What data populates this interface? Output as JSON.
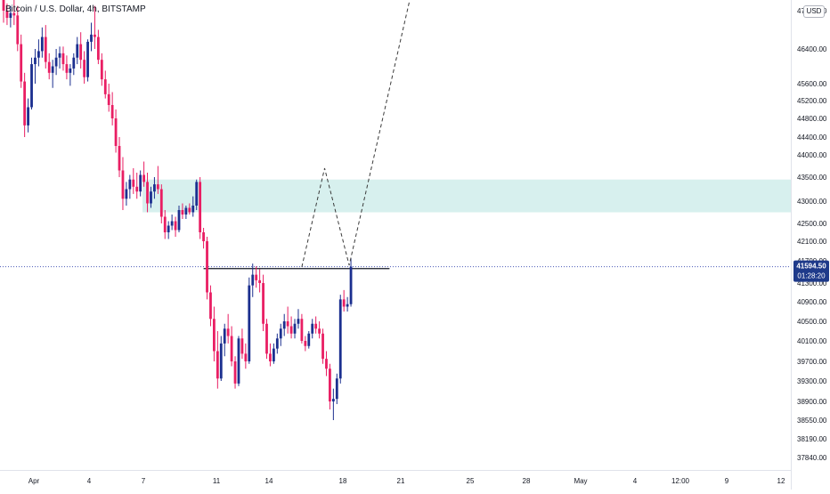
{
  "header": {
    "title": "Bitcoin / U.S. Dollar, 4h, BITSTAMP",
    "currency": "USD"
  },
  "chart_data": {
    "type": "candlestick",
    "title": "Bitcoin / U.S. Dollar, 4h, BITSTAMP",
    "currency": "USD",
    "price_ticks": [
      47200,
      46400,
      45600,
      45200,
      44800,
      44400,
      44000,
      43500,
      43000,
      42500,
      42100,
      41700,
      41300,
      40900,
      40500,
      40100,
      39700,
      39300,
      38900,
      38550,
      38190,
      37840
    ],
    "price_tick_labels": [
      "47200.00",
      "46400.00",
      "45600.00",
      "45200.00",
      "44800.00",
      "44400.00",
      "44000.00",
      "43500.00",
      "43000.00",
      "42500.00",
      "42100.00",
      "41700.00",
      "41300.00",
      "40900.00",
      "40500.00",
      "40100.00",
      "39700.00",
      "39300.00",
      "38900.00",
      "38550.00",
      "38190.00",
      "37840.00"
    ],
    "time_labels": [
      "Apr",
      "4",
      "7",
      "11",
      "14",
      "18",
      "21",
      "25",
      "28",
      "May",
      "4",
      "12:00",
      "9",
      "12"
    ],
    "bar_interval": "4h",
    "last_price": {
      "value": 41594.5,
      "label": "41594.50",
      "countdown": "01:28:20"
    },
    "colors": {
      "up": "#1b2f8f",
      "down": "#e91e63",
      "zone": "#d7f0ee",
      "projection": "#3a3a3a",
      "level": "#131722",
      "last_price_dotted": "#4a5ab8"
    },
    "zone": {
      "from": 42750,
      "to": 43450
    },
    "resistance_level": {
      "price": 41560,
      "from_bar": 57,
      "to_bar": 110
    },
    "projection_path": [
      {
        "bar": 85,
        "price": 41590
      },
      {
        "bar": 91.5,
        "price": 43700
      },
      {
        "bar": 98.5,
        "price": 41620
      },
      {
        "bar": 116,
        "price": 47500
      }
    ],
    "candles": [
      [
        47450,
        47550,
        46950,
        47200
      ],
      [
        47200,
        47350,
        46900,
        47050
      ],
      [
        47050,
        47300,
        46850,
        47150
      ],
      [
        47150,
        47450,
        46900,
        47100
      ],
      [
        47100,
        47300,
        46350,
        46500
      ],
      [
        46500,
        46700,
        45500,
        45650
      ],
      [
        45650,
        45850,
        44400,
        44650
      ],
      [
        44650,
        45250,
        44500,
        45050
      ],
      [
        45050,
        46200,
        45000,
        46050
      ],
      [
        46050,
        46400,
        45600,
        46200
      ],
      [
        46200,
        46600,
        46000,
        46350
      ],
      [
        46350,
        46850,
        46200,
        46650
      ],
      [
        46650,
        46900,
        45950,
        46100
      ],
      [
        46100,
        46300,
        45700,
        45850
      ],
      [
        45850,
        46150,
        45500,
        46000
      ],
      [
        46000,
        46400,
        45800,
        46200
      ],
      [
        46200,
        46450,
        45950,
        46300
      ],
      [
        46300,
        46450,
        45900,
        46050
      ],
      [
        46050,
        46250,
        45700,
        45850
      ],
      [
        45850,
        46050,
        45550,
        45950
      ],
      [
        45950,
        46300,
        45800,
        46200
      ],
      [
        46200,
        46650,
        46050,
        46500
      ],
      [
        46500,
        46750,
        45950,
        46150
      ],
      [
        46150,
        46350,
        45600,
        45750
      ],
      [
        45750,
        46600,
        45650,
        46550
      ],
      [
        46550,
        46950,
        46350,
        46700
      ],
      [
        46700,
        47300,
        46400,
        46650
      ],
      [
        46650,
        46800,
        46050,
        46150
      ],
      [
        46150,
        46300,
        45550,
        45700
      ],
      [
        45700,
        45900,
        45250,
        45350
      ],
      [
        45350,
        45600,
        44950,
        45100
      ],
      [
        45100,
        45400,
        44650,
        44800
      ],
      [
        44800,
        45000,
        44050,
        44200
      ],
      [
        44200,
        44400,
        43500,
        43650
      ],
      [
        43650,
        43950,
        42800,
        43050
      ],
      [
        43050,
        43400,
        42900,
        43250
      ],
      [
        43250,
        43550,
        43050,
        43450
      ],
      [
        43450,
        43700,
        43150,
        43300
      ],
      [
        43300,
        43600,
        43050,
        43200
      ],
      [
        43200,
        43650,
        43100,
        43550
      ],
      [
        43550,
        43850,
        43300,
        43400
      ],
      [
        43400,
        43600,
        42750,
        42950
      ],
      [
        42950,
        43300,
        42850,
        43200
      ],
      [
        43200,
        43500,
        43050,
        43350
      ],
      [
        43350,
        43750,
        43150,
        43250
      ],
      [
        43250,
        43350,
        42500,
        42650
      ],
      [
        42650,
        42800,
        42150,
        42300
      ],
      [
        42300,
        42550,
        42150,
        42450
      ],
      [
        42450,
        42700,
        42350,
        42550
      ],
      [
        42550,
        42650,
        42200,
        42350
      ],
      [
        42350,
        42900,
        42300,
        42800
      ],
      [
        42800,
        42950,
        42600,
        42700
      ],
      [
        42700,
        42900,
        42600,
        42850
      ],
      [
        42850,
        42950,
        42700,
        42750
      ],
      [
        42750,
        43100,
        42650,
        42900
      ],
      [
        42900,
        43450,
        42800,
        43400
      ],
      [
        43400,
        43500,
        42150,
        42300
      ],
      [
        42300,
        42400,
        41950,
        42100
      ],
      [
        42100,
        42200,
        40950,
        41100
      ],
      [
        41100,
        41250,
        40400,
        40550
      ],
      [
        40550,
        40800,
        39700,
        39900
      ],
      [
        39900,
        40300,
        39150,
        39350
      ],
      [
        39350,
        40200,
        39300,
        40050
      ],
      [
        40050,
        40450,
        39800,
        40350
      ],
      [
        40350,
        40650,
        40050,
        40200
      ],
      [
        40200,
        40400,
        39600,
        39700
      ],
      [
        39700,
        39800,
        39150,
        39250
      ],
      [
        39250,
        40200,
        39200,
        40150
      ],
      [
        40150,
        40350,
        39750,
        39850
      ],
      [
        39850,
        40050,
        39550,
        39700
      ],
      [
        39700,
        41400,
        39650,
        41250
      ],
      [
        41250,
        41650,
        41000,
        41450
      ],
      [
        41450,
        41600,
        41200,
        41350
      ],
      [
        41350,
        41550,
        41100,
        41300
      ],
      [
        41300,
        41450,
        40300,
        40450
      ],
      [
        40450,
        40550,
        39750,
        39850
      ],
      [
        39850,
        40050,
        39600,
        39700
      ],
      [
        39700,
        40050,
        39650,
        39950
      ],
      [
        39950,
        40250,
        39850,
        40150
      ],
      [
        40150,
        40450,
        40000,
        40350
      ],
      [
        40350,
        40650,
        40200,
        40500
      ],
      [
        40500,
        40800,
        40250,
        40400
      ],
      [
        40400,
        40600,
        40150,
        40250
      ],
      [
        40250,
        40550,
        40150,
        40450
      ],
      [
        40450,
        40750,
        40350,
        40550
      ],
      [
        40550,
        40650,
        40050,
        40100
      ],
      [
        40100,
        40200,
        39900,
        40000
      ],
      [
        40000,
        40300,
        39950,
        40250
      ],
      [
        40250,
        40550,
        40150,
        40450
      ],
      [
        40450,
        40600,
        40250,
        40350
      ],
      [
        40350,
        40500,
        40150,
        40250
      ],
      [
        40250,
        40350,
        39650,
        39750
      ],
      [
        39750,
        39900,
        39400,
        39550
      ],
      [
        39550,
        39650,
        38750,
        38900
      ],
      [
        38900,
        39150,
        38550,
        38950
      ],
      [
        38950,
        39450,
        38850,
        39350
      ],
      [
        39350,
        41050,
        39250,
        40950
      ],
      [
        40950,
        41150,
        40700,
        40800
      ],
      [
        40800,
        41000,
        40700,
        40850
      ],
      [
        40850,
        41750,
        40800,
        41594.5
      ]
    ]
  }
}
